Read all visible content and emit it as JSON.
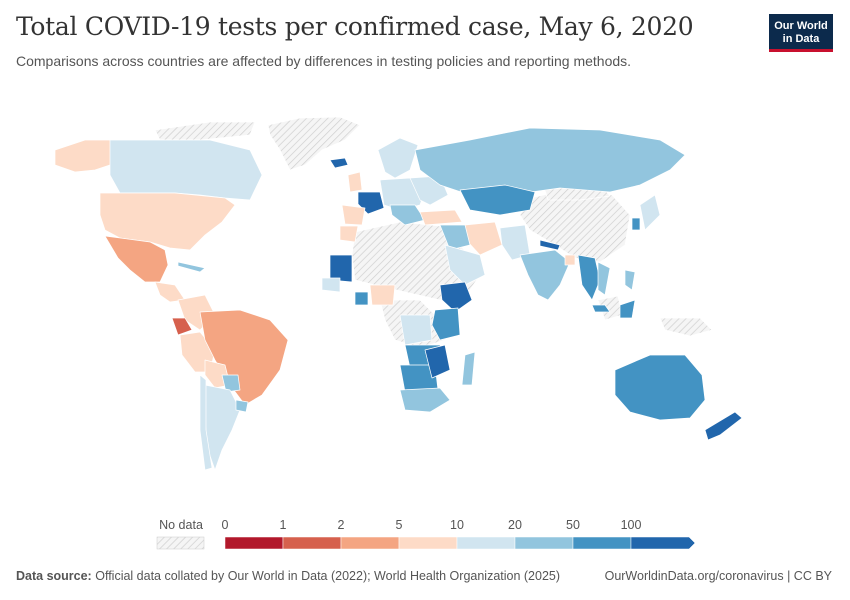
{
  "header": {
    "title": "Total COVID-19 tests per confirmed case, May 6, 2020",
    "subtitle": "Comparisons across countries are affected by differences in testing policies and reporting methods."
  },
  "logo": {
    "line1": "Our World",
    "line2": "in Data"
  },
  "legend": {
    "no_data_label": "No data",
    "ticks": [
      "0",
      "1",
      "2",
      "5",
      "10",
      "20",
      "50",
      "100"
    ],
    "bins": [
      {
        "range": "0-1",
        "color": "#b2182b"
      },
      {
        "range": "1-2",
        "color": "#d6604d"
      },
      {
        "range": "2-5",
        "color": "#f4a582"
      },
      {
        "range": "5-10",
        "color": "#fddbc7"
      },
      {
        "range": "10-20",
        "color": "#d1e5f0"
      },
      {
        "range": "20-50",
        "color": "#92c5de"
      },
      {
        "range": "50-100",
        "color": "#4393c3"
      },
      {
        "range": "100+",
        "color": "#2166ac"
      }
    ]
  },
  "colors": {
    "no_data": "#ececec",
    "border": "#ffffff"
  },
  "footer": {
    "source_label": "Data source:",
    "source_text": "Official data collated by Our World in Data (2022); World Health Organization (2025)",
    "url": "OurWorldinData.org/coronavirus | CC BY"
  }
}
